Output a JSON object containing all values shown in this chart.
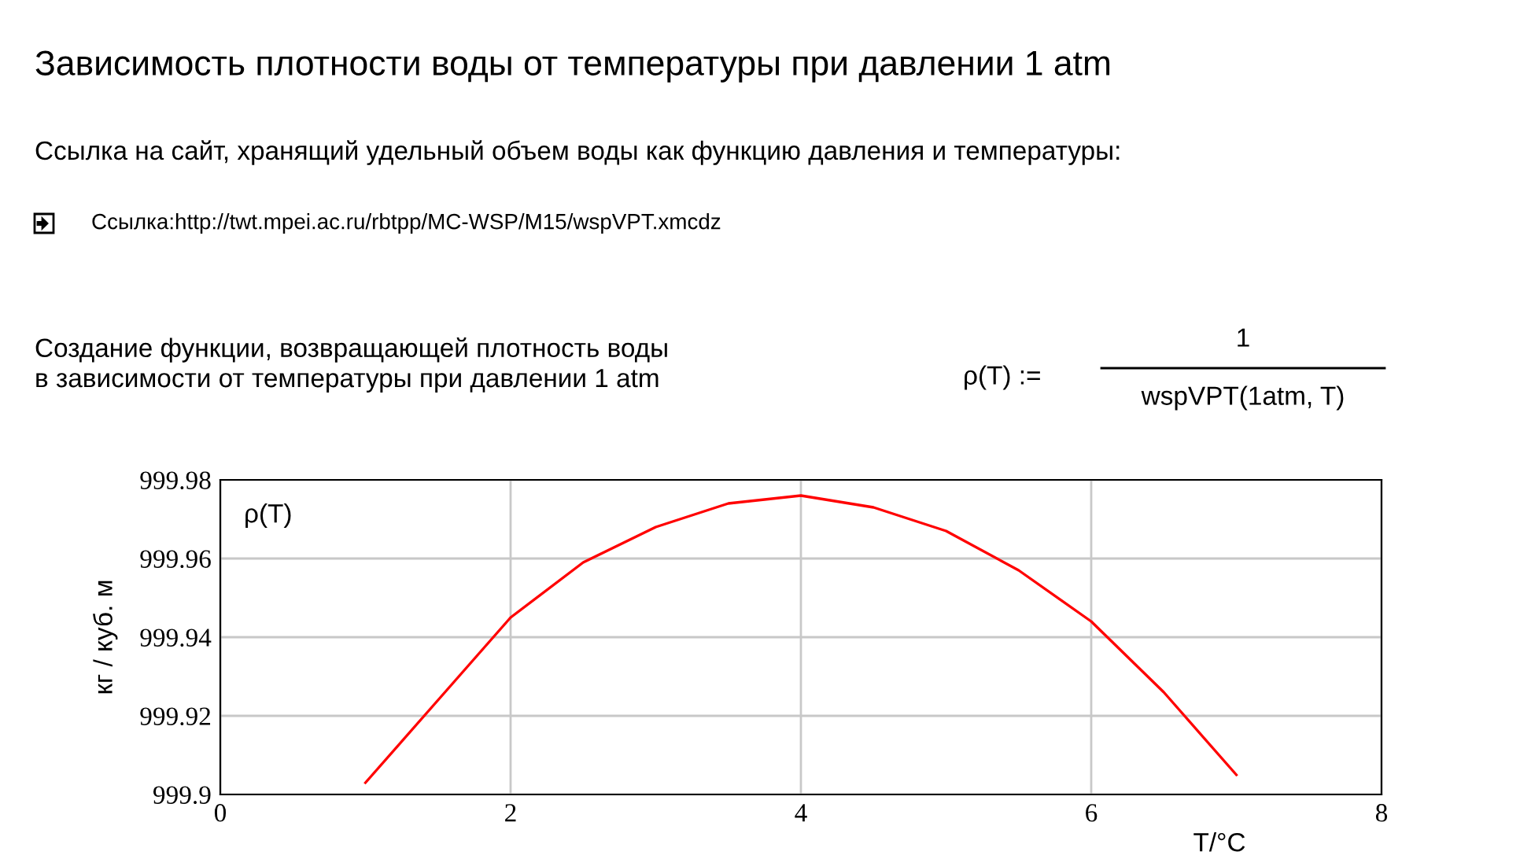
{
  "chart_data": {
    "type": "line",
    "title": "Зависимость плотности воды от температуры при давлении 1 atm",
    "subtitle": "Ссылка на сайт, хранящий удельный объем воды как функцию давления и температуры:",
    "annotations": [
      "Ссылка:http://twt.mpei.ac.ru/rbtpp/MC-WSP/M15/wspVPT.xmcdz",
      "Создание функции, возвращающей плотность воды\nв зависимости от температуры при давлении 1 atm",
      "ρ(T) :=",
      "1",
      "wspVPT(1atm, T)"
    ],
    "xlabel": "T/°C",
    "ylabel": "кг / куб. м",
    "series": [
      {
        "name": "ρ(T)",
        "color": "#ff0000",
        "x": [
          1,
          1.5,
          2,
          2.5,
          3,
          3.5,
          4,
          4.5,
          5,
          5.5,
          6,
          6.5,
          7
        ],
        "values": [
          999.903,
          999.924,
          999.945,
          999.959,
          999.968,
          999.974,
          999.976,
          999.973,
          999.967,
          999.957,
          999.944,
          999.926,
          999.905
        ]
      }
    ],
    "xlim": [
      0,
      8
    ],
    "xticks": [
      0,
      2,
      4,
      6,
      8
    ],
    "ylim": [
      999.9,
      999.98
    ],
    "yticks": [
      999.9,
      999.92,
      999.94,
      999.96,
      999.98
    ],
    "grid": true,
    "legend": "top left",
    "marker": "none",
    "line_style": "solid"
  }
}
